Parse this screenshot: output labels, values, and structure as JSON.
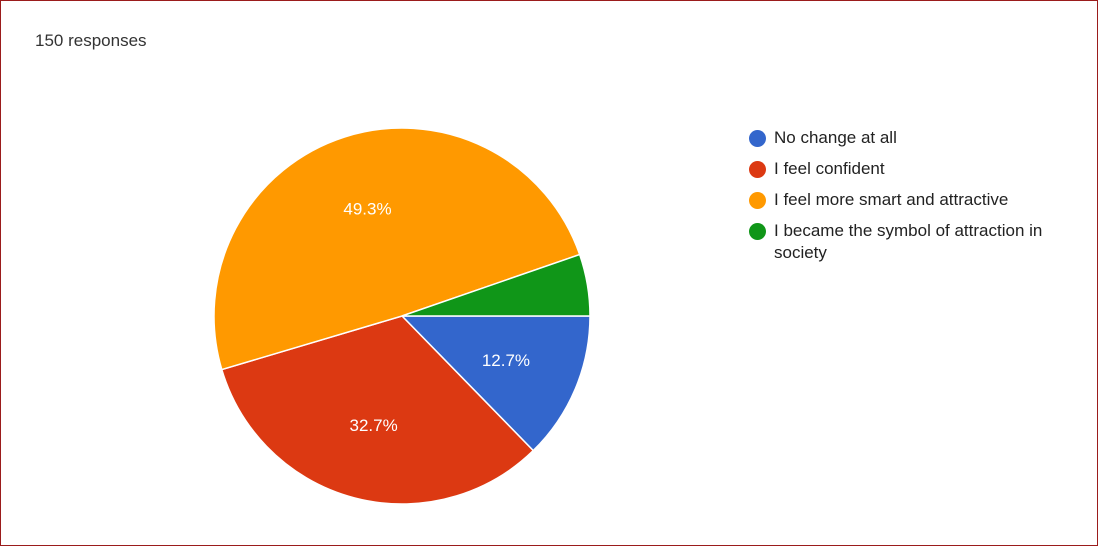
{
  "header": {
    "responses": "150 responses"
  },
  "chart_data": {
    "type": "pie",
    "categories": [
      "No change at all",
      "I feel confident",
      "I feel more smart and attractive",
      "I became the symbol of attraction in society"
    ],
    "values": [
      12.7,
      32.7,
      49.3,
      5.3
    ],
    "labels": [
      "12.7%",
      "32.7%",
      "49.3%",
      ""
    ],
    "colors": [
      "#3366cc",
      "#dc3912",
      "#ff9900",
      "#109618"
    ],
    "legend_position": "right"
  }
}
